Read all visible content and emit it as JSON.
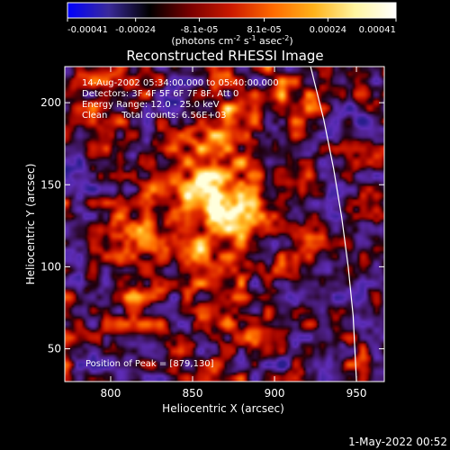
{
  "colorbar": {
    "range": [
      -0.00041,
      0.00041
    ],
    "ticks": [
      -0.00041,
      -0.00024,
      -8.1e-05,
      8.1e-05,
      0.00024,
      0.00041
    ],
    "tick_labels": [
      "-0.00041",
      "-0.00024",
      "-8.1e-05",
      "8.1e-05",
      "0.00024",
      "0.00041"
    ],
    "units": {
      "prefix": "(photons cm",
      "sup1": "-2",
      "mid1": " s",
      "sup2": "-1",
      "mid2": " asec",
      "sup3": "-2",
      "suffix": ")"
    },
    "colors": [
      "#0000ff",
      "#3a2a9a",
      "#000000",
      "#7a0000",
      "#cc1a00",
      "#ff6a00",
      "#ffb21a",
      "#fff5a0",
      "#ffffff"
    ]
  },
  "chart_data": {
    "type": "heatmap",
    "title": "Reconstructed RHESSI Image",
    "xlabel": "Heliocentric X (arcsec)",
    "ylabel": "Heliocentric Y (arcsec)",
    "xlim": [
      772,
      967
    ],
    "ylim": [
      30,
      222
    ],
    "xticks": [
      800,
      850,
      900,
      950
    ],
    "yticks": [
      50,
      100,
      150,
      200
    ],
    "info_lines": [
      "14-Aug-2002 05:34:00.000 to 05:40:00.000",
      "Detectors: 3F 4F 5F 6F 7F 8F, Att 0",
      "Energy Range: 12.0 - 25.0 keV",
      "Clean     Total counts: 6.56E+03"
    ],
    "peak_label": "Position of Peak = [879,130]",
    "peak": [
      879,
      130
    ],
    "limb_curve": [
      [
        922,
        222
      ],
      [
        930,
        190
      ],
      [
        936,
        160
      ],
      [
        941,
        130
      ],
      [
        945,
        100
      ],
      [
        948,
        70
      ],
      [
        950,
        30
      ]
    ],
    "hot_blobs": [
      {
        "x": 879,
        "y": 130,
        "sigma": 9,
        "amp": 1.0
      },
      {
        "x": 868,
        "y": 140,
        "sigma": 10,
        "amp": 0.75
      },
      {
        "x": 855,
        "y": 150,
        "sigma": 10,
        "amp": 0.7
      },
      {
        "x": 842,
        "y": 125,
        "sigma": 11,
        "amp": 0.6
      },
      {
        "x": 860,
        "y": 175,
        "sigma": 10,
        "amp": 0.55
      },
      {
        "x": 885,
        "y": 160,
        "sigma": 9,
        "amp": 0.5
      },
      {
        "x": 850,
        "y": 108,
        "sigma": 10,
        "amp": 0.5
      },
      {
        "x": 830,
        "y": 150,
        "sigma": 9,
        "amp": 0.45
      },
      {
        "x": 880,
        "y": 105,
        "sigma": 8,
        "amp": 0.45
      },
      {
        "x": 870,
        "y": 195,
        "sigma": 8,
        "amp": 0.4
      },
      {
        "x": 800,
        "y": 210,
        "sigma": 8,
        "amp": 0.35
      },
      {
        "x": 905,
        "y": 200,
        "sigma": 9,
        "amp": 0.4
      },
      {
        "x": 815,
        "y": 85,
        "sigma": 9,
        "amp": 0.4
      },
      {
        "x": 870,
        "y": 75,
        "sigma": 9,
        "amp": 0.35
      },
      {
        "x": 810,
        "y": 120,
        "sigma": 8,
        "amp": 0.35
      },
      {
        "x": 890,
        "y": 55,
        "sigma": 8,
        "amp": 0.3
      },
      {
        "x": 925,
        "y": 110,
        "sigma": 8,
        "amp": 0.3
      }
    ],
    "cold_regions": [
      {
        "x": 940,
        "y": 130,
        "sigma": 14,
        "amp": 0.55
      },
      {
        "x": 945,
        "y": 80,
        "sigma": 10,
        "amp": 0.6
      },
      {
        "x": 790,
        "y": 160,
        "sigma": 12,
        "amp": 0.45
      },
      {
        "x": 800,
        "y": 40,
        "sigma": 12,
        "amp": 0.5
      },
      {
        "x": 910,
        "y": 80,
        "sigma": 10,
        "amp": 0.4
      },
      {
        "x": 950,
        "y": 190,
        "sigma": 10,
        "amp": 0.4
      },
      {
        "x": 840,
        "y": 200,
        "sigma": 10,
        "amp": 0.35
      },
      {
        "x": 905,
        "y": 40,
        "sigma": 10,
        "amp": 0.45
      },
      {
        "x": 780,
        "y": 100,
        "sigma": 10,
        "amp": 0.4
      }
    ]
  },
  "footer": {
    "timestamp": "1-May-2022 00:52"
  }
}
